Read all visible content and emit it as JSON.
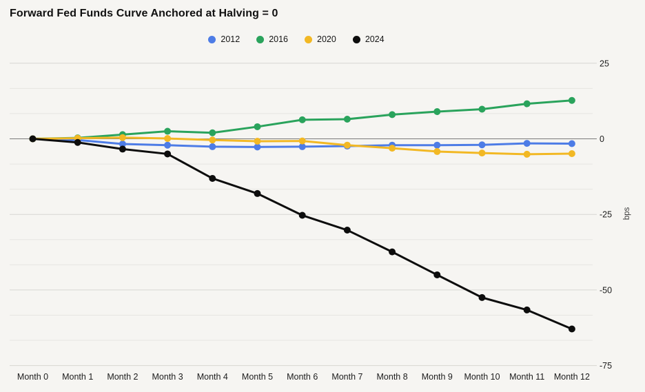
{
  "title": "Forward Fed Funds Curve Anchored at Halving = 0",
  "chart_data": {
    "type": "line",
    "title": "Forward Fed Funds Curve Anchored at Halving = 0",
    "categories": [
      "Month 0",
      "Month 1",
      "Month 2",
      "Month 3",
      "Month 4",
      "Month 5",
      "Month 6",
      "Month 7",
      "Month 8",
      "Month 9",
      "Month 10",
      "Month 11",
      "Month 12"
    ],
    "xlabel": "",
    "ylabel": "bps",
    "ylim": [
      -75,
      25
    ],
    "yticks": [
      25,
      0,
      -25,
      -50,
      -75
    ],
    "minor_gridlines_per_major": 3,
    "grid": true,
    "legend_position": "top-center",
    "zero_line": true,
    "series": [
      {
        "name": "2012",
        "color": "#4d7ce6",
        "values": [
          0,
          -0.4,
          -1.7,
          -2.1,
          -2.6,
          -2.7,
          -2.6,
          -2.4,
          -2.1,
          -2.1,
          -2.0,
          -1.5,
          -1.6
        ]
      },
      {
        "name": "2016",
        "color": "#2aa35c",
        "values": [
          0,
          0.3,
          1.4,
          2.5,
          2.0,
          4.0,
          6.3,
          6.5,
          8.0,
          9.0,
          9.8,
          11.6,
          12.7
        ]
      },
      {
        "name": "2020",
        "color": "#f2b824",
        "values": [
          0,
          0.2,
          0.4,
          0.1,
          -0.4,
          -0.8,
          -0.7,
          -2.1,
          -3.1,
          -4.2,
          -4.7,
          -5.1,
          -4.9
        ]
      },
      {
        "name": "2024",
        "color": "#0d0d0d",
        "values": [
          0,
          -1.2,
          -3.4,
          -5.0,
          -13.1,
          -18.1,
          -25.3,
          -30.2,
          -37.4,
          -45.0,
          -52.5,
          -56.6,
          -62.9
        ]
      }
    ],
    "colors": {
      "background": "#f6f5f2",
      "minor_gridline": "#e6e5e1",
      "major_gridline": "#d7d6d1",
      "zero_line": "#7a7a7a",
      "tick_label": "#1c1c1c",
      "axis_unit_label": "#3a3a3a"
    }
  }
}
